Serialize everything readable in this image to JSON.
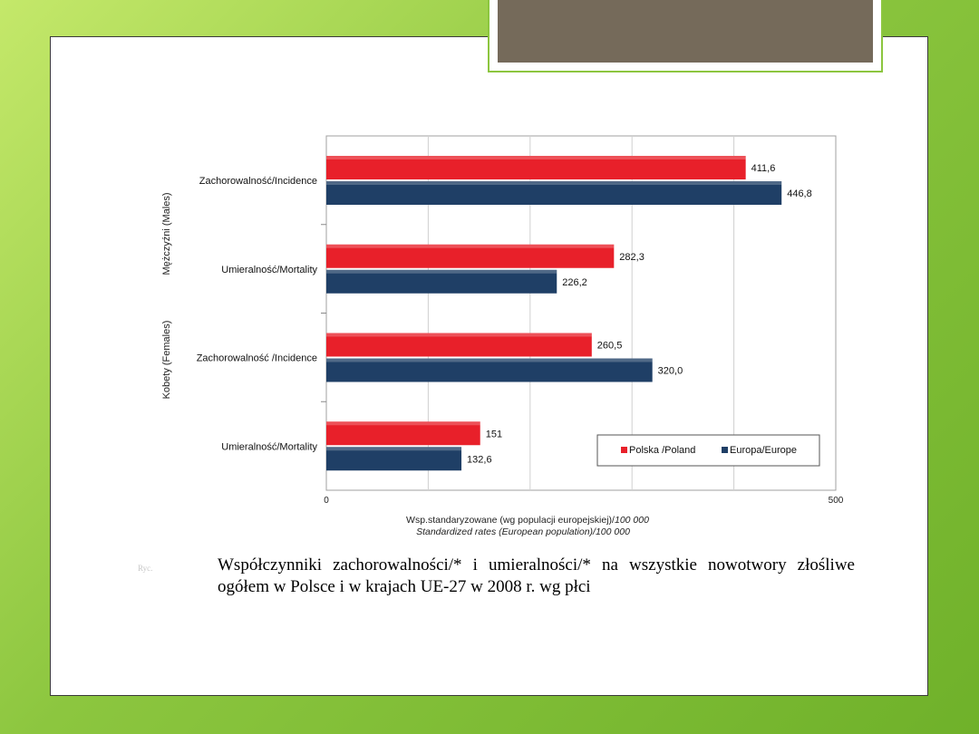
{
  "chart_data": {
    "type": "bar",
    "orientation": "horizontal",
    "groups": [
      {
        "label": "Mężczyźni (Males)",
        "categories": [
          "Zachorowalność/Incidence",
          "Umieralność/Mortality"
        ]
      },
      {
        "label": "Kobety (Females)",
        "categories": [
          "Zachorowalność /Incidence",
          "Umieralność/Mortality"
        ]
      }
    ],
    "categories": [
      "Zachorowalność/Incidence",
      "Umieralność/Mortality",
      "Zachorowalność /Incidence",
      "Umieralność/Mortality"
    ],
    "series": [
      {
        "name": "Polska /Poland",
        "color": "#e8202a",
        "values": [
          411.6,
          282.3,
          260.5,
          151
        ],
        "labels": [
          "411,6",
          "282,3",
          "260,5",
          "151"
        ]
      },
      {
        "name": "Europa/Europe",
        "color": "#1f3f66",
        "values": [
          446.8,
          226.2,
          320.0,
          132.6
        ],
        "labels": [
          "446,8",
          "226,2",
          "320,0",
          "132,6"
        ]
      }
    ],
    "xlim": [
      0,
      500
    ],
    "x_ticks": [
      "0",
      "500"
    ],
    "xlabel_line1": "Wsp.standaryzowane (wg populacji europejskiej)/",
    "xlabel_line1_italic": "100 000",
    "xlabel_line2": "Standardized rates (European population)/100 000",
    "legend_position": "bottom-right",
    "grid": true
  },
  "caption": "Współczynniki zachorowalności/* i umieralności/* na wszystkie nowotwory złośliwe ogółem w Polsce i w krajach UE-27 w 2008 r. wg płci",
  "caption_mark": "Ryc."
}
